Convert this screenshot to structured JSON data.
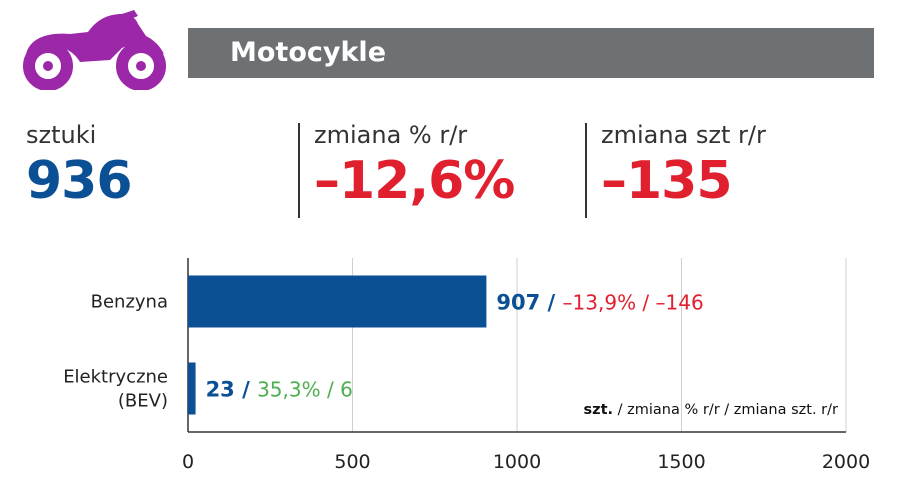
{
  "header": {
    "title": "Motocykle",
    "icon": "motorcycle-icon",
    "icon_color": "#9c27a8",
    "bar_color": "#6d7174"
  },
  "stats": [
    {
      "label": "sztuki",
      "value": "936",
      "color": "#0b4f94"
    },
    {
      "label": "zmiana % r/r",
      "value": "–12,6%",
      "color": "#e0202e"
    },
    {
      "label": "zmiana szt r/r",
      "value": "–135",
      "color": "#e0202e"
    }
  ],
  "chart_data": {
    "type": "bar",
    "orientation": "horizontal",
    "categories": [
      "Benzyna",
      "Elektryczne (BEV)"
    ],
    "category_lines": [
      [
        "Benzyna"
      ],
      [
        "Elektryczne",
        "(BEV)"
      ]
    ],
    "values": [
      907,
      23
    ],
    "xlim": [
      0,
      2000
    ],
    "xticks": [
      0,
      500,
      1000,
      1500,
      2000
    ],
    "grid": true,
    "bar_color": "#0b4f94",
    "labels": [
      {
        "main": "907",
        "sep": " / ",
        "rest": "–13,9% / –146",
        "rest_color": "#e0202e"
      },
      {
        "main": "23",
        "sep": " / ",
        "rest": "35,3% / 6",
        "rest_color": "#4caf50"
      }
    ],
    "legend_note": {
      "bold": "szt.",
      "rest": " / zmiana % r/r / zmiana szt. r/r"
    }
  }
}
